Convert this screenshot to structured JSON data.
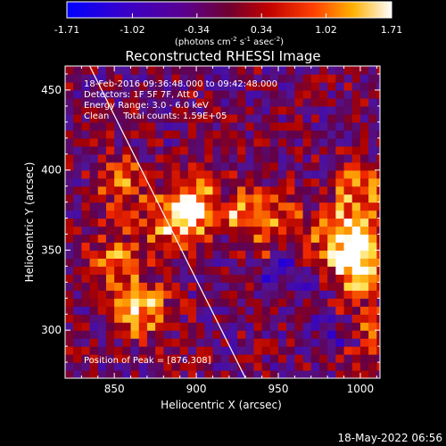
{
  "chart_data": {
    "type": "heatmap",
    "title": "Reconstructed RHESSI Image",
    "xlabel": "Heliocentric X (arcsec)",
    "ylabel": "Heliocentric Y (arcsec)",
    "xlim": [
      820,
      1012
    ],
    "ylim": [
      270,
      465
    ],
    "xticks": [
      850,
      900,
      950,
      1000
    ],
    "yticks": [
      300,
      350,
      400,
      450
    ],
    "colorbar": {
      "range": [
        -1.71,
        1.71
      ],
      "ticks": [
        "-1.71",
        "-1.02",
        "-0.34",
        "0.34",
        "1.02",
        "1.71"
      ],
      "units_main": "(photons cm",
      "units_sup1": "-2",
      "units_mid1": " s",
      "units_sup2": "-1",
      "units_mid2": " asec",
      "units_sup3": "-2",
      "units_end": ")"
    },
    "annotations": [
      "18-Feb-2016 09:36:48.000 to 09:42:48.000",
      "Detectors: 1F 5F 7F, Att 0",
      "Energy Range: 3.0 - 6.0 keV",
      "Clean     Total counts: 1.59E+05"
    ],
    "peak_label": "Position of Peak = [876,308]",
    "peak": [
      876,
      308
    ],
    "limb_line": [
      [
        835,
        465
      ],
      [
        930,
        270
      ]
    ],
    "sources": [
      {
        "x": 900,
        "y": 378,
        "amplitude": 1.5
      },
      {
        "x": 885,
        "y": 368,
        "amplitude": 1.3
      },
      {
        "x": 995,
        "y": 360,
        "amplitude": 1.5
      },
      {
        "x": 1000,
        "y": 338,
        "amplitude": 1.6
      },
      {
        "x": 998,
        "y": 300,
        "amplitude": 1.4
      },
      {
        "x": 1000,
        "y": 390,
        "amplitude": 1.2
      },
      {
        "x": 866,
        "y": 312,
        "amplitude": 1.5
      },
      {
        "x": 852,
        "y": 345,
        "amplitude": 1.1
      },
      {
        "x": 855,
        "y": 392,
        "amplitude": 1.0
      }
    ],
    "ridges": [
      {
        "cx": 920,
        "cy": 312,
        "r": 60,
        "width": 14,
        "amplitude": 1.0,
        "a0": 0.0,
        "a1": 1.6
      },
      {
        "cx": 935,
        "cy": 290,
        "r": 55,
        "width": 12,
        "amplitude": -1.2,
        "a0": 0.0,
        "a1": 1.4
      }
    ],
    "grid": false
  },
  "footer": {
    "date": "18-May-2022 06:56"
  }
}
